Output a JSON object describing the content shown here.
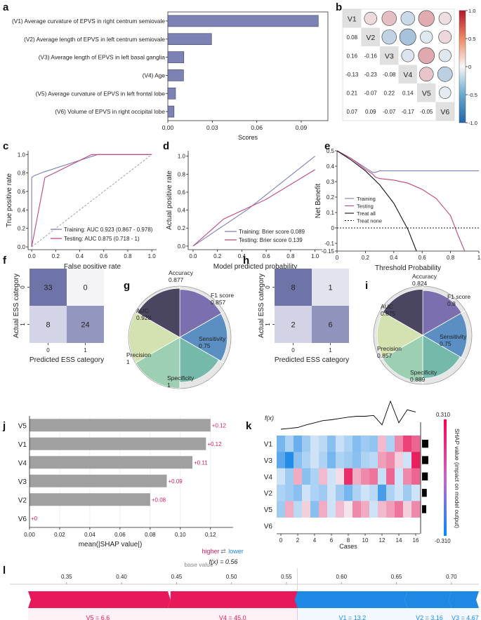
{
  "panel_letters": [
    "a",
    "b",
    "c",
    "d",
    "e",
    "f",
    "g",
    "h",
    "i",
    "j",
    "k",
    "l"
  ],
  "chart_data": [
    {
      "panel": "a",
      "type": "bar",
      "orientation": "horizontal",
      "categories": [
        "(V1) Average curvature of EPVS in right centrum semiovale",
        "(V2) Average length of EPVS in left centrum semiovale",
        "(V3) Average length of EPVS in left basal ganglia",
        "(V4) Age",
        "(V5) Average curvature of EPVS in left frontal lobe",
        "(V6) Volume of EPVS in right occipital lobe"
      ],
      "values": [
        0.1015,
        0.0295,
        0.0108,
        0.0106,
        0.0052,
        0.0042
      ],
      "xlabel": "Scores",
      "xlim": [
        0,
        0.108
      ],
      "xticks": [
        0,
        0.03,
        0.06,
        0.09
      ],
      "xtick_labels": [
        "0.00",
        "0.03",
        "0.06",
        "0.09"
      ],
      "bar_color": "#7c82b3"
    },
    {
      "panel": "b",
      "type": "heatmap",
      "subtype": "correlation",
      "labels": [
        "V1",
        "V2",
        "V3",
        "V4",
        "V5",
        "V6"
      ],
      "matrix": [
        [
          1,
          0.08,
          0.16,
          -0.13,
          0.21,
          0.07
        ],
        [
          0.08,
          1,
          -0.16,
          -0.23,
          -0.07,
          0.09
        ],
        [
          0.16,
          -0.16,
          1,
          -0.08,
          0.22,
          -0.07
        ],
        [
          -0.13,
          -0.23,
          -0.08,
          1,
          0.14,
          -0.17
        ],
        [
          0.21,
          -0.07,
          0.22,
          0.14,
          1,
          -0.05
        ],
        [
          0.07,
          0.09,
          -0.07,
          -0.17,
          -0.05,
          1
        ]
      ],
      "lower_labels": [
        [
          "0.08"
        ],
        [
          "0.16",
          "-0.16"
        ],
        [
          "-0.13",
          "-0.23",
          "-0.08"
        ],
        [
          "0.21",
          "-0.07",
          "0.22",
          "0.14"
        ],
        [
          "0.07",
          "0.09",
          "-0.07",
          "-0.17",
          "-0.05"
        ]
      ],
      "colorbar_ticks": [
        1,
        0.5,
        0,
        -0.5,
        -1
      ],
      "colorbar_labels": [
        "1.0",
        "0.5",
        "0",
        "-0.5",
        "-1.0"
      ]
    },
    {
      "panel": "c",
      "type": "line",
      "title": "",
      "xlabel": "False positive rate",
      "ylabel": "True positive rate",
      "xlim": [
        0,
        1
      ],
      "ylim": [
        0,
        1
      ],
      "ticks": [
        "0.0",
        "0.2",
        "0.4",
        "0.6",
        "0.8",
        "1.0"
      ],
      "series": [
        {
          "name": "Training: AUC 0.923 (0.867 - 0.978)",
          "color": "#7b7fc0",
          "x": [
            0,
            0,
            0.02,
            0.1,
            0.55,
            1
          ],
          "y": [
            0,
            0.75,
            0.77,
            0.81,
            1,
            1
          ]
        },
        {
          "name": "Testing: AUC 0.875 (0.718 - 1)",
          "color": "#c4457f",
          "x": [
            0,
            0.11,
            0.5,
            1
          ],
          "y": [
            0,
            0.75,
            1,
            1
          ]
        }
      ],
      "diagonal": true
    },
    {
      "panel": "d",
      "type": "line",
      "xlabel": "Model predicted probability",
      "ylabel": "Actual positive rate",
      "xlim": [
        0,
        1
      ],
      "ylim": [
        0,
        1
      ],
      "ticks": [
        "0.0",
        "0.2",
        "0.4",
        "0.6",
        "0.8",
        "1.0"
      ],
      "series": [
        {
          "name": "Training: Brier score 0.089",
          "color": "#7b7fc0",
          "x": [
            0,
            0.45,
            1
          ],
          "y": [
            0,
            0.41,
            1
          ]
        },
        {
          "name": "Testing: Brier score 0.139",
          "color": "#c4457f",
          "x": [
            0,
            0.25,
            0.6,
            1
          ],
          "y": [
            0,
            0.3,
            0.52,
            0.85
          ]
        }
      ]
    },
    {
      "panel": "e",
      "type": "line",
      "xlabel": "Threshold Probability",
      "ylabel": "Net Benefit",
      "xlim": [
        0,
        1
      ],
      "ylim": [
        -0.15,
        0.5
      ],
      "xticks": [
        "0",
        "0.2",
        "0.4",
        "0.6",
        "0.8",
        "1"
      ],
      "yticks": [
        "0.5",
        "0.4",
        "0.3",
        "0.2",
        "0.1",
        "0",
        "-0.1",
        "-0.15"
      ],
      "series": [
        {
          "name": "Training",
          "color": "#7b7fc0",
          "x": [
            0,
            0.05,
            0.1,
            0.15,
            0.2,
            0.25,
            0.27,
            0.3,
            1
          ],
          "y": [
            0.5,
            0.475,
            0.45,
            0.42,
            0.39,
            0.36,
            0.36,
            0.37,
            0.37
          ]
        },
        {
          "name": "Testing",
          "color": "#c4457f",
          "x": [
            0,
            0.1,
            0.2,
            0.25,
            0.27,
            0.3,
            0.4,
            0.5,
            0.6,
            0.7,
            0.8,
            0.85,
            0.9
          ],
          "y": [
            0.5,
            0.45,
            0.38,
            0.35,
            0.33,
            0.32,
            0.31,
            0.29,
            0.25,
            0.19,
            0.08,
            -0.04,
            -0.15
          ]
        },
        {
          "name": "Treat all",
          "color": "#111111",
          "x": [
            0,
            0.1,
            0.2,
            0.3,
            0.4,
            0.5,
            0.56
          ],
          "y": [
            0.5,
            0.44,
            0.37,
            0.28,
            0.16,
            -0.01,
            -0.15
          ]
        },
        {
          "name": "Treat none",
          "color": "#111111",
          "dashed": true,
          "x": [
            0,
            1
          ],
          "y": [
            0,
            0
          ]
        }
      ]
    },
    {
      "panel": "f",
      "type": "heatmap",
      "subtype": "confusion_matrix",
      "xlabel": "Predicted ESS category",
      "ylabel": "Actual ESS category",
      "xticks": [
        "0",
        "1"
      ],
      "yticks": [
        "0",
        "1"
      ],
      "matrix": [
        [
          33,
          0
        ],
        [
          8,
          24
        ]
      ]
    },
    {
      "panel": "g",
      "type": "pie",
      "subtype": "radar_pie",
      "labels": [
        "Accuracy",
        "F1 score",
        "Sensitivity",
        "Specificity",
        "Precision",
        "AUC"
      ],
      "values": [
        0.877,
        0.857,
        0.75,
        1,
        1,
        0.923
      ],
      "value_labels": [
        "0.877",
        "0.857",
        "0.75",
        "1",
        "1",
        "0.923"
      ],
      "colors": [
        "#7b6fb0",
        "#5b8fc4",
        "#74b9a9",
        "#9dcfb2",
        "#d3e2b0",
        "#4a4560"
      ]
    },
    {
      "panel": "h",
      "type": "heatmap",
      "subtype": "confusion_matrix",
      "xlabel": "Predicted ESS category",
      "ylabel": "Actual ESS category",
      "xticks": [
        "0",
        "1"
      ],
      "yticks": [
        "0",
        "1"
      ],
      "matrix": [
        [
          8,
          1
        ],
        [
          2,
          6
        ]
      ]
    },
    {
      "panel": "i",
      "type": "pie",
      "subtype": "radar_pie",
      "labels": [
        "Accuracy",
        "F1 score",
        "Sensitivity",
        "Specificity",
        "Precision",
        "AUC"
      ],
      "values": [
        0.824,
        0.8,
        0.75,
        0.889,
        0.857,
        0.875
      ],
      "value_labels": [
        "0.824",
        "0.8",
        "0.75",
        "0.889",
        "0.857",
        "0.875"
      ],
      "colors": [
        "#7b6fb0",
        "#5b8fc4",
        "#74b9a9",
        "#9dcfb2",
        "#d3e2b0",
        "#4a4560"
      ]
    },
    {
      "panel": "j",
      "type": "bar",
      "orientation": "horizontal",
      "categories": [
        "V5",
        "V1",
        "V4",
        "V3",
        "V2",
        "V6"
      ],
      "values": [
        0.12,
        0.117,
        0.108,
        0.091,
        0.08,
        0
      ],
      "value_labels": [
        "+0.12",
        "+0.12",
        "+0.11",
        "+0.09",
        "+0.08",
        "+0"
      ],
      "xlabel": "mean(|SHAP value|)",
      "xlim": [
        0,
        0.135
      ],
      "xticks": [
        "0.00",
        "0.02",
        "0.04",
        "0.06",
        "0.08",
        "0.10",
        "0.12"
      ],
      "bar_color": "#a0a0a0",
      "label_color": "#d81b60"
    },
    {
      "panel": "k",
      "type": "heatmap",
      "subtype": "shap_heatmap",
      "fx_label": "f(x)",
      "xlabel": "Cases",
      "xticks": [
        "0",
        "2",
        "4",
        "6",
        "8",
        "10",
        "12",
        "14",
        "16"
      ],
      "rows": [
        "V1",
        "V3",
        "V4",
        "V2",
        "V5",
        "V6"
      ],
      "values": [
        [
          -0.18,
          -0.1,
          -0.2,
          -0.12,
          -0.05,
          -0.08,
          -0.15,
          -0.06,
          -0.1,
          -0.16,
          -0.12,
          -0.14,
          0.08,
          -0.1,
          0.15,
          0.25,
          0.2
        ],
        [
          -0.22,
          -0.3,
          -0.15,
          -0.1,
          -0.05,
          -0.1,
          -0.18,
          -0.1,
          -0.12,
          -0.15,
          -0.1,
          -0.08,
          0.12,
          0.15,
          0.05,
          -0.05,
          0.3
        ],
        [
          -0.05,
          -0.12,
          0.1,
          -0.15,
          -0.1,
          0.08,
          -0.05,
          0.03,
          0.28,
          0.1,
          0.15,
          0.18,
          -0.06,
          0.2,
          -0.05,
          0.15,
          0.2
        ],
        [
          -0.1,
          -0.12,
          -0.15,
          -0.05,
          -0.1,
          -0.12,
          -0.05,
          -0.12,
          -0.18,
          -0.1,
          -0.05,
          -0.08,
          -0.25,
          -0.1,
          -0.05,
          -0.12,
          -0.05
        ],
        [
          -0.12,
          0.1,
          -0.08,
          0.05,
          -0.15,
          0.1,
          -0.05,
          0.08,
          0.02,
          0.15,
          0.1,
          -0.05,
          0.08,
          0.12,
          0.18,
          0.05,
          0.15
        ],
        [
          0,
          0,
          0,
          0,
          0,
          0,
          0,
          0,
          0,
          0,
          0,
          0,
          0,
          0,
          0,
          0,
          0
        ]
      ],
      "fx": [
        0.3,
        0.32,
        0.34,
        0.4,
        0.45,
        0.5,
        0.52,
        0.55,
        0.58,
        0.6,
        0.6,
        0.62,
        0.4,
        0.95,
        0.45,
        0.75,
        0.7
      ],
      "importance": [
        0.12,
        0.12,
        0.11,
        0.09,
        0.08,
        0
      ],
      "colorbar_labels": [
        "0.310",
        "-0.310"
      ],
      "colorbar_title": "SHAP value (impact on model output)"
    },
    {
      "panel": "l",
      "type": "force_plot",
      "legend_higher": "higher",
      "legend_arrows": "⇄",
      "legend_lower": "lower",
      "base_value_label": "base value",
      "fx_text": "f(x) = 0.56",
      "base_value": 0.442,
      "fx": 0.56,
      "xlim": [
        0.315,
        0.725
      ],
      "xticks": [
        "0.35",
        "0.40",
        "0.45",
        "0.50",
        "0.55",
        "0.60",
        "0.65",
        "0.70"
      ],
      "positive": [
        {
          "label": "V5 = 6.6",
          "from": 0.315,
          "to": 0.442
        },
        {
          "label": "V4 = 45.0",
          "from": 0.442,
          "to": 0.56
        }
      ],
      "negative": [
        {
          "label": "V1 = 13.2",
          "from": 0.56,
          "to": 0.66
        },
        {
          "label": "V2 = 3.16",
          "from": 0.66,
          "to": 0.7
        },
        {
          "label": "V3 = 4.67",
          "from": 0.7,
          "to": 0.725
        }
      ],
      "positive_color": "#e8195a",
      "negative_color": "#1e88e5"
    }
  ]
}
